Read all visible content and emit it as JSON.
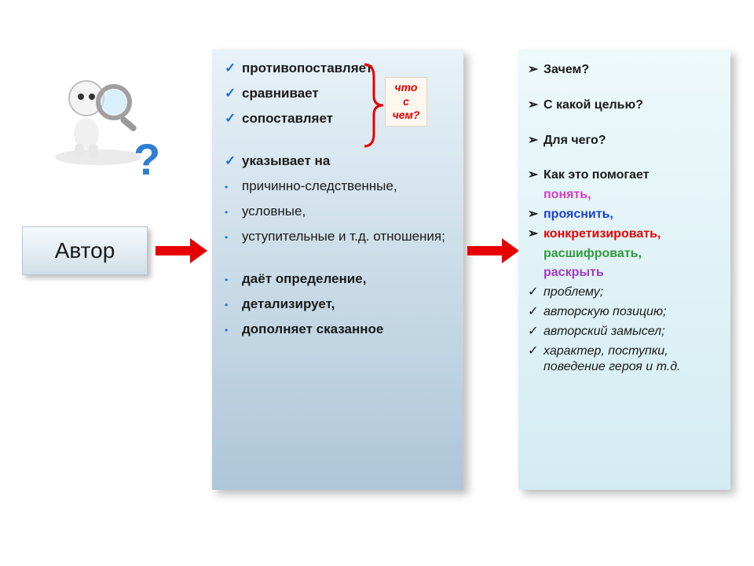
{
  "author_label": "Автор",
  "question_mark": "?",
  "bracket_label": {
    "l1": "что",
    "l2": "с",
    "l3": "чем?"
  },
  "middle": {
    "groups": [
      {
        "type": "check",
        "bold": true,
        "text": "противопоставляет"
      },
      {
        "type": "check",
        "bold": true,
        "text": "сравнивает"
      },
      {
        "type": "check",
        "bold": true,
        "text": "сопоставляет"
      },
      {
        "type": "gap"
      },
      {
        "type": "check",
        "bold": true,
        "text": "указывает на"
      },
      {
        "type": "dot",
        "bold": false,
        "text": "причинно-следственные,"
      },
      {
        "type": "dot",
        "bold": false,
        "text": "условные,"
      },
      {
        "type": "dot",
        "bold": false,
        "text": "уступительные и т.д. отношения;"
      },
      {
        "type": "gap"
      },
      {
        "type": "dot",
        "bold": true,
        "text": "даёт определение,"
      },
      {
        "type": "dot",
        "bold": true,
        "text": "детализирует,"
      },
      {
        "type": "dot",
        "bold": true,
        "text": "дополняет сказанное"
      }
    ]
  },
  "right": {
    "questions": [
      "Зачем?",
      "С какой целью?",
      "Для чего?"
    ],
    "help_lead": "Как это помогает",
    "colored": [
      {
        "text": "понять,",
        "color": "#d63cc1",
        "marker": false
      },
      {
        "text": "прояснить,",
        "color": "#1e3fd8",
        "marker": true
      },
      {
        "text": "конкретизировать,",
        "color": "#e60000",
        "marker": true
      },
      {
        "text": "расшифровать,",
        "color": "#2e9b3a",
        "marker": false
      },
      {
        "text": "раскрыть",
        "color": "#a03cc1",
        "marker": false
      }
    ],
    "tail": [
      "проблему;",
      "авторскую позицию;",
      "авторский замысел;",
      "характер, поступки, поведение героя и т.д."
    ]
  },
  "colors": {
    "arrow": "#e60000",
    "check": "#1e6fd8",
    "bracket": "#e60000"
  }
}
